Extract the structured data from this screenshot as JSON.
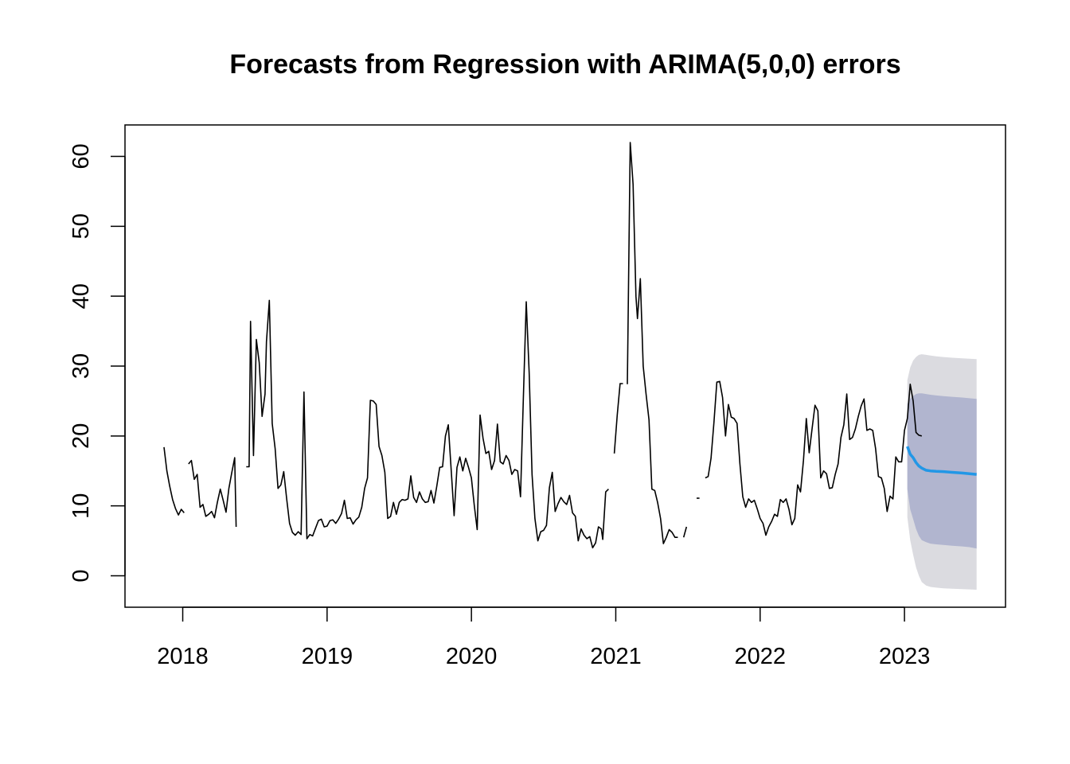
{
  "chart_data": {
    "type": "line",
    "title": "Forecasts from Regression with ARIMA(5,0,0) errors",
    "xlabel": "",
    "ylabel": "",
    "xlim": [
      2017.6,
      2023.7
    ],
    "ylim": [
      -4.5,
      64.5
    ],
    "x_ticks": [
      2018,
      2019,
      2020,
      2021,
      2022,
      2023
    ],
    "x_tick_labels": [
      "2018",
      "2019",
      "2020",
      "2021",
      "2022",
      "2023"
    ],
    "y_ticks": [
      0,
      10,
      20,
      30,
      40,
      50,
      60
    ],
    "y_tick_labels": [
      "0",
      "10",
      "20",
      "30",
      "40",
      "50",
      "60"
    ],
    "grid": false,
    "legend": "none",
    "colors": {
      "history": "#000000",
      "forecast": "#2297e6",
      "band80": "#b1b5cf",
      "band95": "#dbdbe0"
    },
    "history_segments": [
      [
        [
          2017.87,
          18.4
        ],
        [
          2017.89,
          15.0
        ],
        [
          2017.91,
          12.8
        ],
        [
          2017.93,
          10.9
        ],
        [
          2017.95,
          9.6
        ],
        [
          2017.97,
          8.7
        ],
        [
          2017.99,
          9.5
        ],
        [
          2018.01,
          9.0
        ]
      ],
      [
        [
          2018.04,
          16.0
        ],
        [
          2018.06,
          16.5
        ],
        [
          2018.08,
          13.8
        ],
        [
          2018.1,
          14.5
        ],
        [
          2018.12,
          9.8
        ],
        [
          2018.14,
          10.2
        ],
        [
          2018.16,
          8.5
        ],
        [
          2018.18,
          8.8
        ],
        [
          2018.2,
          9.2
        ],
        [
          2018.22,
          8.3
        ],
        [
          2018.24,
          10.5
        ],
        [
          2018.26,
          12.4
        ],
        [
          2018.28,
          10.8
        ],
        [
          2018.3,
          9.1
        ],
        [
          2018.32,
          12.5
        ],
        [
          2018.34,
          14.8
        ],
        [
          2018.36,
          16.9
        ],
        [
          2018.37,
          7.0
        ]
      ],
      [
        [
          2018.44,
          15.6
        ],
        [
          2018.46,
          15.6
        ],
        [
          2018.47,
          36.4
        ],
        [
          2018.49,
          17.2
        ],
        [
          2018.51,
          33.8
        ],
        [
          2018.53,
          30.5
        ],
        [
          2018.55,
          22.8
        ],
        [
          2018.57,
          26.0
        ],
        [
          2018.58,
          33.5
        ],
        [
          2018.6,
          39.4
        ],
        [
          2018.62,
          21.8
        ],
        [
          2018.64,
          18.2
        ],
        [
          2018.66,
          12.5
        ],
        [
          2018.68,
          13.0
        ],
        [
          2018.7,
          14.9
        ],
        [
          2018.72,
          11.0
        ],
        [
          2018.74,
          7.5
        ],
        [
          2018.76,
          6.2
        ],
        [
          2018.78,
          5.8
        ],
        [
          2018.8,
          6.3
        ],
        [
          2018.82,
          5.9
        ],
        [
          2018.84,
          26.3
        ],
        [
          2018.86,
          5.3
        ],
        [
          2018.88,
          5.9
        ],
        [
          2018.9,
          5.7
        ],
        [
          2018.92,
          6.8
        ],
        [
          2018.94,
          7.9
        ],
        [
          2018.96,
          8.1
        ],
        [
          2018.98,
          7.0
        ],
        [
          2019.0,
          7.1
        ],
        [
          2019.02,
          7.9
        ],
        [
          2019.04,
          8.0
        ],
        [
          2019.06,
          7.5
        ],
        [
          2019.08,
          8.1
        ],
        [
          2019.1,
          8.9
        ],
        [
          2019.12,
          10.8
        ],
        [
          2019.14,
          8.2
        ],
        [
          2019.16,
          8.3
        ],
        [
          2019.18,
          7.4
        ],
        [
          2019.2,
          8.0
        ],
        [
          2019.22,
          8.4
        ],
        [
          2019.24,
          9.8
        ],
        [
          2019.26,
          12.5
        ],
        [
          2019.28,
          14.0
        ],
        [
          2019.3,
          25.1
        ],
        [
          2019.32,
          25.0
        ],
        [
          2019.34,
          24.5
        ],
        [
          2019.36,
          18.5
        ],
        [
          2019.38,
          17.2
        ],
        [
          2019.4,
          14.8
        ],
        [
          2019.42,
          8.2
        ],
        [
          2019.44,
          8.5
        ],
        [
          2019.46,
          10.5
        ],
        [
          2019.48,
          8.8
        ],
        [
          2019.5,
          10.5
        ],
        [
          2019.52,
          10.9
        ],
        [
          2019.54,
          10.8
        ],
        [
          2019.56,
          11.0
        ],
        [
          2019.58,
          14.3
        ],
        [
          2019.6,
          11.2
        ],
        [
          2019.62,
          10.5
        ],
        [
          2019.64,
          12.0
        ],
        [
          2019.66,
          11.0
        ],
        [
          2019.68,
          10.5
        ],
        [
          2019.7,
          10.6
        ],
        [
          2019.72,
          12.2
        ],
        [
          2019.74,
          10.4
        ],
        [
          2019.76,
          12.8
        ],
        [
          2019.78,
          15.5
        ],
        [
          2019.8,
          15.6
        ],
        [
          2019.82,
          20.0
        ],
        [
          2019.84,
          21.6
        ],
        [
          2019.86,
          15.0
        ],
        [
          2019.88,
          8.6
        ],
        [
          2019.9,
          15.5
        ],
        [
          2019.92,
          17.0
        ],
        [
          2019.94,
          15.0
        ],
        [
          2019.96,
          16.8
        ],
        [
          2019.98,
          15.5
        ],
        [
          2020.0,
          14.0
        ],
        [
          2020.02,
          10.0
        ],
        [
          2020.04,
          6.6
        ],
        [
          2020.06,
          23.0
        ],
        [
          2020.08,
          19.7
        ],
        [
          2020.1,
          17.5
        ],
        [
          2020.12,
          17.8
        ],
        [
          2020.14,
          15.2
        ],
        [
          2020.16,
          16.5
        ],
        [
          2020.18,
          21.7
        ],
        [
          2020.2,
          16.3
        ],
        [
          2020.22,
          16.0
        ],
        [
          2020.24,
          17.2
        ],
        [
          2020.26,
          16.5
        ],
        [
          2020.28,
          14.5
        ],
        [
          2020.3,
          15.2
        ],
        [
          2020.32,
          15.0
        ],
        [
          2020.34,
          11.3
        ],
        [
          2020.36,
          25.5
        ],
        [
          2020.38,
          39.2
        ],
        [
          2020.4,
          29.0
        ],
        [
          2020.42,
          14.5
        ],
        [
          2020.44,
          8.2
        ],
        [
          2020.46,
          5.0
        ],
        [
          2020.48,
          6.3
        ],
        [
          2020.5,
          6.5
        ],
        [
          2020.52,
          7.2
        ],
        [
          2020.54,
          12.6
        ],
        [
          2020.56,
          14.8
        ],
        [
          2020.58,
          9.2
        ],
        [
          2020.6,
          10.3
        ],
        [
          2020.62,
          11.2
        ],
        [
          2020.64,
          10.6
        ],
        [
          2020.66,
          10.2
        ],
        [
          2020.68,
          11.5
        ],
        [
          2020.7,
          9.0
        ],
        [
          2020.72,
          8.5
        ],
        [
          2020.74,
          5.0
        ],
        [
          2020.76,
          6.7
        ],
        [
          2020.78,
          5.8
        ],
        [
          2020.8,
          5.3
        ],
        [
          2020.82,
          5.6
        ],
        [
          2020.84,
          4.0
        ],
        [
          2020.86,
          4.7
        ],
        [
          2020.88,
          7.0
        ],
        [
          2020.9,
          6.7
        ],
        [
          2020.91,
          5.2
        ],
        [
          2020.93,
          12.0
        ],
        [
          2020.95,
          12.4
        ]
      ],
      [
        [
          2020.99,
          17.5
        ],
        [
          2021.01,
          23.0
        ],
        [
          2021.03,
          27.5
        ],
        [
          2021.05,
          27.5
        ]
      ],
      [
        [
          2021.08,
          27.4
        ],
        [
          2021.1,
          62.0
        ],
        [
          2021.12,
          56.0
        ],
        [
          2021.14,
          40.0
        ],
        [
          2021.15,
          36.8
        ],
        [
          2021.17,
          42.5
        ],
        [
          2021.19,
          30.0
        ],
        [
          2021.21,
          26.0
        ],
        [
          2021.23,
          22.3
        ],
        [
          2021.25,
          12.4
        ],
        [
          2021.27,
          12.2
        ],
        [
          2021.29,
          10.5
        ],
        [
          2021.31,
          8.2
        ],
        [
          2021.33,
          4.6
        ],
        [
          2021.35,
          5.5
        ],
        [
          2021.37,
          6.6
        ],
        [
          2021.39,
          6.2
        ],
        [
          2021.41,
          5.5
        ],
        [
          2021.43,
          5.5
        ]
      ],
      [
        [
          2021.47,
          5.5
        ],
        [
          2021.49,
          7.0
        ]
      ],
      [
        [
          2021.56,
          11.1
        ],
        [
          2021.58,
          11.1
        ]
      ],
      [
        [
          2021.62,
          14.0
        ],
        [
          2021.64,
          14.2
        ],
        [
          2021.66,
          16.8
        ],
        [
          2021.68,
          22.0
        ],
        [
          2021.7,
          27.7
        ],
        [
          2021.72,
          27.8
        ],
        [
          2021.74,
          25.5
        ],
        [
          2021.76,
          20.0
        ],
        [
          2021.78,
          24.5
        ],
        [
          2021.8,
          22.7
        ],
        [
          2021.82,
          22.5
        ],
        [
          2021.84,
          21.8
        ],
        [
          2021.86,
          16.0
        ],
        [
          2021.88,
          11.3
        ],
        [
          2021.9,
          9.8
        ],
        [
          2021.92,
          11.0
        ],
        [
          2021.94,
          10.5
        ],
        [
          2021.96,
          10.8
        ],
        [
          2021.98,
          9.6
        ],
        [
          2022.0,
          8.2
        ],
        [
          2022.02,
          7.5
        ],
        [
          2022.04,
          5.8
        ],
        [
          2022.06,
          7.0
        ],
        [
          2022.08,
          7.8
        ],
        [
          2022.1,
          8.8
        ],
        [
          2022.12,
          8.5
        ],
        [
          2022.14,
          10.9
        ],
        [
          2022.16,
          10.5
        ],
        [
          2022.18,
          11.0
        ],
        [
          2022.2,
          9.5
        ],
        [
          2022.22,
          7.3
        ],
        [
          2022.24,
          8.2
        ],
        [
          2022.26,
          13.0
        ],
        [
          2022.28,
          12.0
        ],
        [
          2022.3,
          16.5
        ],
        [
          2022.32,
          22.5
        ],
        [
          2022.34,
          17.6
        ],
        [
          2022.36,
          21.0
        ],
        [
          2022.38,
          24.4
        ],
        [
          2022.4,
          23.6
        ],
        [
          2022.42,
          14.0
        ],
        [
          2022.44,
          15.0
        ],
        [
          2022.46,
          14.6
        ],
        [
          2022.48,
          12.5
        ],
        [
          2022.5,
          12.6
        ],
        [
          2022.52,
          14.5
        ],
        [
          2022.54,
          16.0
        ],
        [
          2022.56,
          19.8
        ],
        [
          2022.58,
          21.6
        ],
        [
          2022.6,
          26.0
        ],
        [
          2022.62,
          19.5
        ],
        [
          2022.64,
          19.8
        ],
        [
          2022.66,
          21.0
        ],
        [
          2022.68,
          22.8
        ],
        [
          2022.7,
          24.3
        ],
        [
          2022.72,
          25.3
        ],
        [
          2022.74,
          20.8
        ],
        [
          2022.76,
          21.0
        ],
        [
          2022.78,
          20.8
        ],
        [
          2022.8,
          18.2
        ],
        [
          2022.82,
          14.2
        ],
        [
          2022.84,
          14.0
        ],
        [
          2022.86,
          12.5
        ],
        [
          2022.88,
          9.2
        ],
        [
          2022.9,
          11.4
        ],
        [
          2022.92,
          11.0
        ],
        [
          2022.94,
          17.0
        ],
        [
          2022.96,
          16.3
        ],
        [
          2022.98,
          16.3
        ],
        [
          2023.0,
          20.8
        ],
        [
          2023.02,
          22.5
        ],
        [
          2023.04,
          27.4
        ],
        [
          2023.06,
          25.0
        ],
        [
          2023.08,
          20.5
        ],
        [
          2023.1,
          20.1
        ],
        [
          2023.12,
          20.0
        ]
      ]
    ],
    "forecast": {
      "x": [
        2023.02,
        2023.04,
        2023.06,
        2023.08,
        2023.1,
        2023.12,
        2023.15,
        2023.18,
        2023.22,
        2023.27,
        2023.33,
        2023.4,
        2023.45,
        2023.5
      ],
      "mean": [
        18.5,
        17.4,
        16.9,
        16.2,
        15.7,
        15.4,
        15.1,
        15.0,
        14.95,
        14.9,
        14.8,
        14.7,
        14.6,
        14.5
      ],
      "lo80": [
        12.4,
        9.5,
        8.1,
        6.7,
        5.7,
        5.1,
        4.8,
        4.6,
        4.5,
        4.4,
        4.3,
        4.2,
        4.1,
        3.9
      ],
      "hi80": [
        24.6,
        25.3,
        25.7,
        26.0,
        26.1,
        26.1,
        26.0,
        25.9,
        25.8,
        25.7,
        25.6,
        25.5,
        25.4,
        25.3
      ],
      "lo95": [
        8.4,
        5.1,
        3.0,
        1.2,
        0.0,
        -0.9,
        -1.4,
        -1.6,
        -1.7,
        -1.8,
        -1.85,
        -1.9,
        -1.95,
        -2.0
      ],
      "hi95": [
        28.0,
        29.8,
        30.8,
        31.3,
        31.6,
        31.7,
        31.6,
        31.5,
        31.4,
        31.3,
        31.2,
        31.1,
        31.05,
        31.0
      ]
    }
  }
}
